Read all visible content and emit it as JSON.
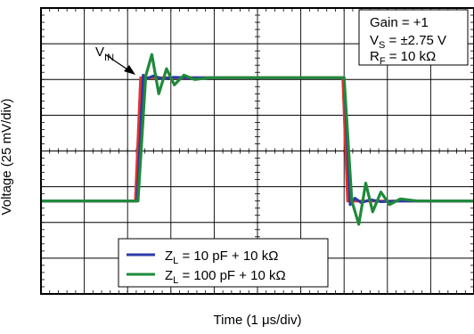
{
  "chart_data": {
    "type": "line",
    "xlabel": "Time (1 μs/div)",
    "ylabel": "Voltage (25 mV/div)",
    "x_divisions": 10,
    "y_divisions": 8,
    "xlim": [
      0,
      10
    ],
    "ylim": [
      0,
      8
    ],
    "grid": true,
    "vin_label": {
      "main": "V",
      "sub": "IN"
    },
    "conditions": [
      {
        "main": "Gain = +1",
        "sub": "",
        "rest": ""
      },
      {
        "main": "V",
        "sub": "S",
        "rest": " = ±2.75 V"
      },
      {
        "main": "R",
        "sub": "F",
        "rest": " = 10 kΩ"
      }
    ],
    "legend_placement": "bottom-center",
    "series": [
      {
        "name": "V_IN",
        "color": "#e8332a",
        "x": [
          0,
          2.18,
          2.3,
          6.97,
          7.08,
          10
        ],
        "y": [
          2.6,
          2.6,
          6.05,
          6.05,
          2.6,
          2.6
        ]
      },
      {
        "name": "Z_L = 10 pF + 10 kΩ",
        "color": "#2b3aa8",
        "x": [
          0,
          2.22,
          2.36,
          2.45,
          2.6,
          2.8,
          3.05,
          3.4,
          7.0,
          7.14,
          7.25,
          7.4,
          7.6,
          7.85,
          8.2,
          10
        ],
        "y": [
          2.6,
          2.6,
          6.12,
          6.03,
          6.1,
          6.02,
          6.06,
          6.05,
          6.05,
          2.5,
          2.68,
          2.55,
          2.64,
          2.58,
          2.6,
          2.6
        ]
      },
      {
        "name": "Z_L = 100 pF + 10 kΩ",
        "color": "#1f8a3a",
        "x": [
          0,
          2.24,
          2.42,
          2.56,
          2.72,
          2.9,
          3.08,
          3.3,
          3.55,
          3.9,
          7.0,
          7.18,
          7.34,
          7.5,
          7.66,
          7.85,
          8.05,
          8.3,
          8.7,
          10
        ],
        "y": [
          2.6,
          2.6,
          6.1,
          6.7,
          5.6,
          6.3,
          5.85,
          6.12,
          6.0,
          6.05,
          6.05,
          2.6,
          1.95,
          3.1,
          2.3,
          2.85,
          2.5,
          2.66,
          2.6,
          2.6
        ]
      }
    ],
    "legend": [
      {
        "main": "Z",
        "sub": "L",
        "rest": " = 10 pF + 10 kΩ",
        "color": "#2b3aa8"
      },
      {
        "main": "Z",
        "sub": "L",
        "rest": " = 100 pF + 10 kΩ",
        "color": "#1f8a3a"
      }
    ]
  }
}
